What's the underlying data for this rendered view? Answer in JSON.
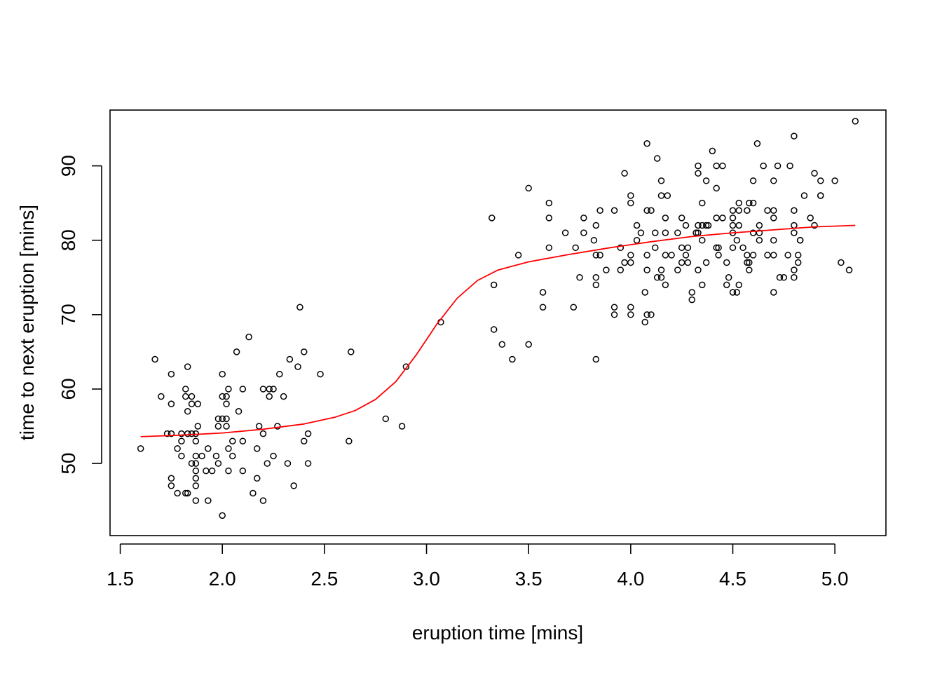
{
  "chart_data": {
    "type": "scatter",
    "xlabel": "eruption time [mins]",
    "ylabel": "time to next eruption [mins]",
    "xlim": [
      1.45,
      5.25
    ],
    "ylim": [
      40.3,
      97.5
    ],
    "xticks": [
      1.5,
      2.0,
      2.5,
      3.0,
      3.5,
      4.0,
      4.5,
      5.0
    ],
    "xtick_labels": [
      "1.5",
      "2.0",
      "2.5",
      "3.0",
      "3.5",
      "4.0",
      "4.5",
      "5.0"
    ],
    "yticks": [
      50,
      60,
      70,
      80,
      90
    ],
    "ytick_labels": [
      "50",
      "60",
      "70",
      "80",
      "90"
    ],
    "grid": false,
    "colors": {
      "points": "#000000",
      "curve": "#ff0000"
    },
    "series": [
      {
        "kind": "points",
        "marker": "open-circle",
        "points": [
          [
            1.6,
            52
          ],
          [
            1.67,
            64
          ],
          [
            1.7,
            59
          ],
          [
            1.73,
            54
          ],
          [
            1.75,
            54
          ],
          [
            1.75,
            62
          ],
          [
            1.75,
            58
          ],
          [
            1.75,
            48
          ],
          [
            1.75,
            47
          ],
          [
            1.78,
            52
          ],
          [
            1.78,
            46
          ],
          [
            1.8,
            53
          ],
          [
            1.8,
            51
          ],
          [
            1.8,
            54
          ],
          [
            1.82,
            60
          ],
          [
            1.82,
            59
          ],
          [
            1.82,
            46
          ],
          [
            1.83,
            63
          ],
          [
            1.83,
            57
          ],
          [
            1.83,
            54
          ],
          [
            1.83,
            46
          ],
          [
            1.85,
            59
          ],
          [
            1.85,
            54
          ],
          [
            1.85,
            58
          ],
          [
            1.85,
            50
          ],
          [
            1.87,
            54
          ],
          [
            1.87,
            53
          ],
          [
            1.87,
            51
          ],
          [
            1.87,
            50
          ],
          [
            1.87,
            49
          ],
          [
            1.87,
            48
          ],
          [
            1.87,
            47
          ],
          [
            1.87,
            45
          ],
          [
            1.88,
            58
          ],
          [
            1.88,
            55
          ],
          [
            1.9,
            51
          ],
          [
            1.92,
            49
          ],
          [
            1.93,
            45
          ],
          [
            1.93,
            52
          ],
          [
            1.95,
            49
          ],
          [
            1.97,
            51
          ],
          [
            1.98,
            56
          ],
          [
            1.98,
            55
          ],
          [
            1.98,
            50
          ],
          [
            2.0,
            62
          ],
          [
            2.0,
            59
          ],
          [
            2.0,
            56
          ],
          [
            2.0,
            43
          ],
          [
            2.02,
            59
          ],
          [
            2.02,
            58
          ],
          [
            2.02,
            56
          ],
          [
            2.02,
            55
          ],
          [
            2.03,
            60
          ],
          [
            2.03,
            52
          ],
          [
            2.03,
            49
          ],
          [
            2.05,
            53
          ],
          [
            2.05,
            51
          ],
          [
            2.07,
            65
          ],
          [
            2.08,
            57
          ],
          [
            2.1,
            60
          ],
          [
            2.1,
            53
          ],
          [
            2.1,
            49
          ],
          [
            2.13,
            67
          ],
          [
            2.15,
            46
          ],
          [
            2.17,
            48
          ],
          [
            2.17,
            52
          ],
          [
            2.18,
            55
          ],
          [
            2.2,
            60
          ],
          [
            2.2,
            54
          ],
          [
            2.2,
            45
          ],
          [
            2.22,
            50
          ],
          [
            2.23,
            60
          ],
          [
            2.23,
            59
          ],
          [
            2.25,
            60
          ],
          [
            2.25,
            51
          ],
          [
            2.27,
            55
          ],
          [
            2.28,
            62
          ],
          [
            2.3,
            59
          ],
          [
            2.32,
            50
          ],
          [
            2.33,
            64
          ],
          [
            2.35,
            47
          ],
          [
            2.37,
            63
          ],
          [
            2.38,
            71
          ],
          [
            2.4,
            65
          ],
          [
            2.4,
            53
          ],
          [
            2.42,
            54
          ],
          [
            2.42,
            50
          ],
          [
            2.48,
            62
          ],
          [
            2.62,
            53
          ],
          [
            2.63,
            65
          ],
          [
            2.8,
            56
          ],
          [
            2.88,
            55
          ],
          [
            2.9,
            63
          ],
          [
            3.07,
            69
          ],
          [
            3.32,
            83
          ],
          [
            3.33,
            74
          ],
          [
            3.33,
            68
          ],
          [
            3.37,
            66
          ],
          [
            3.42,
            64
          ],
          [
            3.45,
            78
          ],
          [
            3.5,
            87
          ],
          [
            3.5,
            66
          ],
          [
            3.57,
            73
          ],
          [
            3.57,
            71
          ],
          [
            3.6,
            85
          ],
          [
            3.6,
            83
          ],
          [
            3.6,
            79
          ],
          [
            3.68,
            81
          ],
          [
            3.72,
            71
          ],
          [
            3.73,
            79
          ],
          [
            3.75,
            75
          ],
          [
            3.77,
            83
          ],
          [
            3.77,
            81
          ],
          [
            3.82,
            80
          ],
          [
            3.83,
            82
          ],
          [
            3.83,
            78
          ],
          [
            3.83,
            75
          ],
          [
            3.83,
            74
          ],
          [
            3.83,
            64
          ],
          [
            3.85,
            84
          ],
          [
            3.85,
            78
          ],
          [
            3.88,
            76
          ],
          [
            3.92,
            84
          ],
          [
            3.92,
            71
          ],
          [
            3.92,
            70
          ],
          [
            3.95,
            79
          ],
          [
            3.95,
            76
          ],
          [
            3.97,
            89
          ],
          [
            3.97,
            77
          ],
          [
            4.0,
            86
          ],
          [
            4.0,
            85
          ],
          [
            4.0,
            78
          ],
          [
            4.0,
            77
          ],
          [
            4.0,
            71
          ],
          [
            4.0,
            70
          ],
          [
            4.03,
            82
          ],
          [
            4.03,
            80
          ],
          [
            4.05,
            81
          ],
          [
            4.07,
            73
          ],
          [
            4.07,
            69
          ],
          [
            4.08,
            93
          ],
          [
            4.08,
            84
          ],
          [
            4.08,
            78
          ],
          [
            4.08,
            76
          ],
          [
            4.08,
            70
          ],
          [
            4.1,
            84
          ],
          [
            4.1,
            70
          ],
          [
            4.12,
            81
          ],
          [
            4.12,
            79
          ],
          [
            4.13,
            91
          ],
          [
            4.13,
            75
          ],
          [
            4.15,
            88
          ],
          [
            4.15,
            86
          ],
          [
            4.15,
            76
          ],
          [
            4.15,
            75
          ],
          [
            4.17,
            83
          ],
          [
            4.17,
            81
          ],
          [
            4.17,
            78
          ],
          [
            4.17,
            74
          ],
          [
            4.18,
            86
          ],
          [
            4.2,
            78
          ],
          [
            4.23,
            81
          ],
          [
            4.23,
            76
          ],
          [
            4.25,
            83
          ],
          [
            4.25,
            79
          ],
          [
            4.25,
            77
          ],
          [
            4.27,
            82
          ],
          [
            4.27,
            78
          ],
          [
            4.28,
            79
          ],
          [
            4.28,
            77
          ],
          [
            4.3,
            73
          ],
          [
            4.3,
            72
          ],
          [
            4.32,
            81
          ],
          [
            4.33,
            90
          ],
          [
            4.33,
            89
          ],
          [
            4.33,
            82
          ],
          [
            4.33,
            81
          ],
          [
            4.33,
            76
          ],
          [
            4.35,
            85
          ],
          [
            4.35,
            82
          ],
          [
            4.35,
            80
          ],
          [
            4.35,
            74
          ],
          [
            4.37,
            88
          ],
          [
            4.37,
            82
          ],
          [
            4.37,
            77
          ],
          [
            4.38,
            82
          ],
          [
            4.4,
            92
          ],
          [
            4.42,
            90
          ],
          [
            4.42,
            87
          ],
          [
            4.42,
            83
          ],
          [
            4.42,
            79
          ],
          [
            4.43,
            79
          ],
          [
            4.43,
            78
          ],
          [
            4.45,
            90
          ],
          [
            4.45,
            83
          ],
          [
            4.47,
            77
          ],
          [
            4.47,
            74
          ],
          [
            4.48,
            75
          ],
          [
            4.5,
            84
          ],
          [
            4.5,
            83
          ],
          [
            4.5,
            82
          ],
          [
            4.5,
            81
          ],
          [
            4.5,
            79
          ],
          [
            4.5,
            73
          ],
          [
            4.52,
            80
          ],
          [
            4.52,
            73
          ],
          [
            4.53,
            85
          ],
          [
            4.53,
            84
          ],
          [
            4.53,
            82
          ],
          [
            4.53,
            74
          ],
          [
            4.55,
            79
          ],
          [
            4.57,
            84
          ],
          [
            4.57,
            78
          ],
          [
            4.57,
            77
          ],
          [
            4.58,
            85
          ],
          [
            4.58,
            77
          ],
          [
            4.58,
            76
          ],
          [
            4.6,
            88
          ],
          [
            4.6,
            85
          ],
          [
            4.6,
            81
          ],
          [
            4.6,
            78
          ],
          [
            4.62,
            93
          ],
          [
            4.63,
            82
          ],
          [
            4.63,
            81
          ],
          [
            4.63,
            80
          ],
          [
            4.65,
            90
          ],
          [
            4.67,
            84
          ],
          [
            4.67,
            78
          ],
          [
            4.7,
            88
          ],
          [
            4.7,
            84
          ],
          [
            4.7,
            83
          ],
          [
            4.7,
            80
          ],
          [
            4.7,
            78
          ],
          [
            4.7,
            73
          ],
          [
            4.72,
            90
          ],
          [
            4.73,
            75
          ],
          [
            4.75,
            75
          ],
          [
            4.77,
            78
          ],
          [
            4.78,
            90
          ],
          [
            4.8,
            94
          ],
          [
            4.8,
            84
          ],
          [
            4.8,
            82
          ],
          [
            4.8,
            81
          ],
          [
            4.8,
            76
          ],
          [
            4.8,
            75
          ],
          [
            4.82,
            78
          ],
          [
            4.82,
            77
          ],
          [
            4.83,
            80
          ],
          [
            4.83,
            80
          ],
          [
            4.85,
            86
          ],
          [
            4.88,
            83
          ],
          [
            4.9,
            89
          ],
          [
            4.9,
            82
          ],
          [
            4.93,
            88
          ],
          [
            4.93,
            86
          ],
          [
            4.93,
            86
          ],
          [
            5.0,
            88
          ],
          [
            5.03,
            77
          ],
          [
            5.07,
            76
          ],
          [
            5.1,
            96
          ]
        ]
      },
      {
        "kind": "curve",
        "style": "red-line",
        "points": [
          [
            1.6,
            53.6
          ],
          [
            1.8,
            53.8
          ],
          [
            2.0,
            54.1
          ],
          [
            2.2,
            54.6
          ],
          [
            2.4,
            55.3
          ],
          [
            2.55,
            56.2
          ],
          [
            2.65,
            57.1
          ],
          [
            2.75,
            58.6
          ],
          [
            2.85,
            61.0
          ],
          [
            2.95,
            64.6
          ],
          [
            3.05,
            68.7
          ],
          [
            3.15,
            72.2
          ],
          [
            3.25,
            74.6
          ],
          [
            3.35,
            76.0
          ],
          [
            3.5,
            77.1
          ],
          [
            3.7,
            78.1
          ],
          [
            3.9,
            79.0
          ],
          [
            4.1,
            79.8
          ],
          [
            4.3,
            80.5
          ],
          [
            4.5,
            81.0
          ],
          [
            4.7,
            81.4
          ],
          [
            4.9,
            81.8
          ],
          [
            5.1,
            82.0
          ]
        ]
      }
    ]
  }
}
